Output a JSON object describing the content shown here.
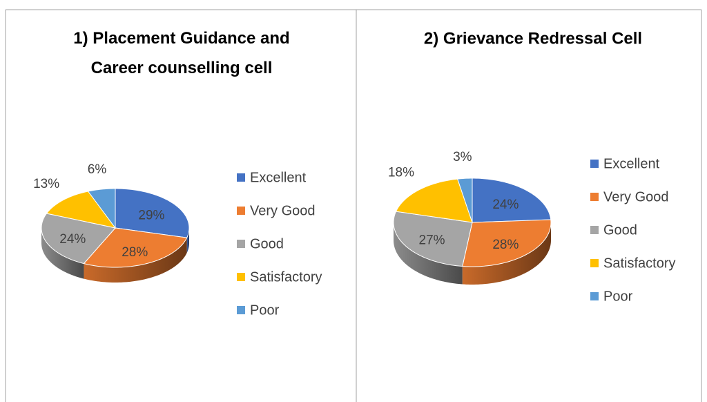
{
  "chart_data": [
    {
      "type": "pie",
      "title": "1) Placement Guidance and Career counselling cell",
      "categories": [
        "Excellent",
        "Very Good",
        "Good",
        "Satisfactory",
        "Poor"
      ],
      "values": [
        29,
        28,
        24,
        13,
        6
      ],
      "value_labels": [
        "29%",
        "28%",
        "24%",
        "13%",
        "6%"
      ],
      "colors": [
        "#4472c4",
        "#ed7d31",
        "#a5a5a5",
        "#ffc000",
        "#5b9bd5"
      ],
      "legend": "right"
    },
    {
      "type": "pie",
      "title": "2) Grievance Redressal Cell",
      "categories": [
        "Excellent",
        "Very Good",
        "Good",
        "Satisfactory",
        "Poor"
      ],
      "values": [
        24,
        28,
        27,
        18,
        3
      ],
      "value_labels": [
        "24%",
        "28%",
        "27%",
        "18%",
        "3%"
      ],
      "colors": [
        "#4472c4",
        "#ed7d31",
        "#a5a5a5",
        "#ffc000",
        "#5b9bd5"
      ],
      "legend": "right"
    }
  ]
}
